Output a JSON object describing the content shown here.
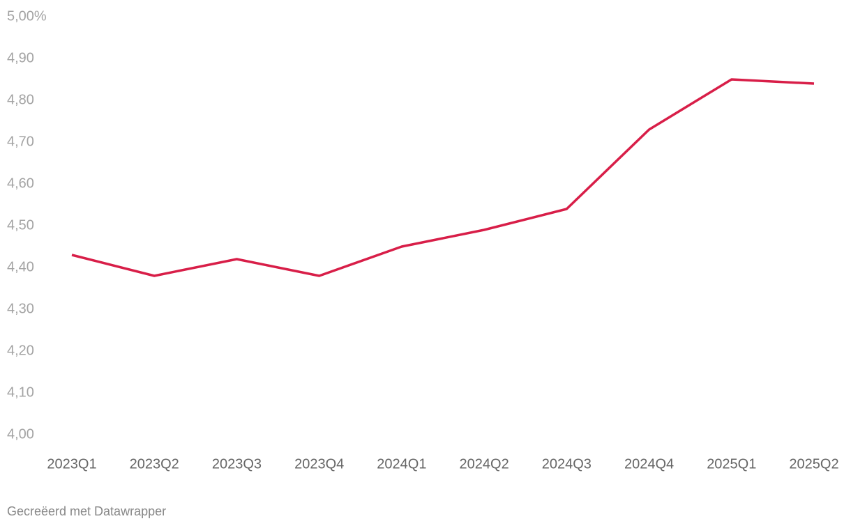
{
  "chart_data": {
    "type": "line",
    "categories": [
      "2023Q1",
      "2023Q2",
      "2023Q3",
      "2023Q4",
      "2024Q1",
      "2024Q2",
      "2024Q3",
      "2024Q4",
      "2025Q1",
      "2025Q2"
    ],
    "values": [
      4.43,
      4.38,
      4.42,
      4.38,
      4.45,
      4.49,
      4.54,
      4.73,
      4.85,
      4.84
    ],
    "color": "#d81e48",
    "ylim": [
      4.0,
      5.0
    ],
    "yticks": [
      {
        "value": 4.0,
        "label": "4,00"
      },
      {
        "value": 4.1,
        "label": "4,10"
      },
      {
        "value": 4.2,
        "label": "4,20"
      },
      {
        "value": 4.3,
        "label": "4,30"
      },
      {
        "value": 4.4,
        "label": "4,40"
      },
      {
        "value": 4.5,
        "label": "4,50"
      },
      {
        "value": 4.6,
        "label": "4,60"
      },
      {
        "value": 4.7,
        "label": "4,70"
      },
      {
        "value": 4.8,
        "label": "4,80"
      },
      {
        "value": 4.9,
        "label": "4,90"
      },
      {
        "value": 5.0,
        "label": "5,00%"
      }
    ],
    "grid": false,
    "credit": "Gecreëerd met Datawrapper"
  }
}
